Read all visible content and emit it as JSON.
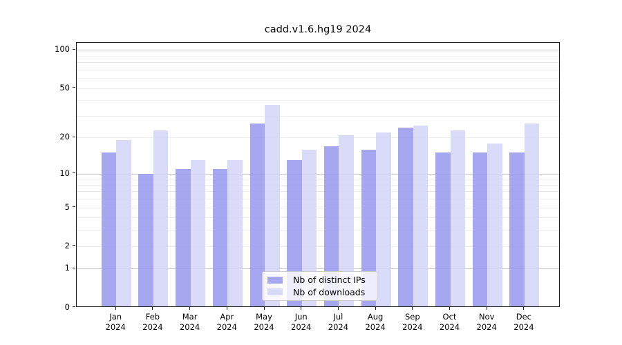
{
  "title": "cadd.v1.6.hg19 2024",
  "colors": {
    "distinct_ips": "#9898ee",
    "downloads": "#d4d4f8",
    "grid_major": "#c6c6c6",
    "grid_minor": "#ededed",
    "axis": "#1a1a1a",
    "legend_border": "#cccccc"
  },
  "chart_data": {
    "type": "bar",
    "title": "cadd.v1.6.hg19 2024",
    "categories": [
      "Jan",
      "Feb",
      "Mar",
      "Apr",
      "May",
      "Jun",
      "Jul",
      "Aug",
      "Sep",
      "Oct",
      "Nov",
      "Dec"
    ],
    "x_tick_year": "2024",
    "series": [
      {
        "name": "Nb of distinct IPs",
        "color": "#9898ee",
        "values": [
          15,
          10,
          11,
          11,
          26,
          13,
          17,
          16,
          24,
          15,
          15,
          15
        ]
      },
      {
        "name": "Nb of downloads",
        "color": "#d4d4f8",
        "values": [
          19,
          23,
          13,
          13,
          37,
          16,
          21,
          22,
          25,
          23,
          18,
          26
        ]
      }
    ],
    "y_scale": "log10(1+y)",
    "y_ticks": [
      0,
      1,
      2,
      5,
      10,
      20,
      50,
      100
    ],
    "ylim": [
      0,
      113
    ],
    "grid": {
      "major": [
        1,
        10,
        100
      ],
      "minor": [
        2,
        3,
        4,
        5,
        6,
        7,
        8,
        9,
        20,
        30,
        40,
        50,
        60,
        70,
        80,
        90
      ]
    },
    "legend_position": "lower center",
    "grid_on": true
  }
}
